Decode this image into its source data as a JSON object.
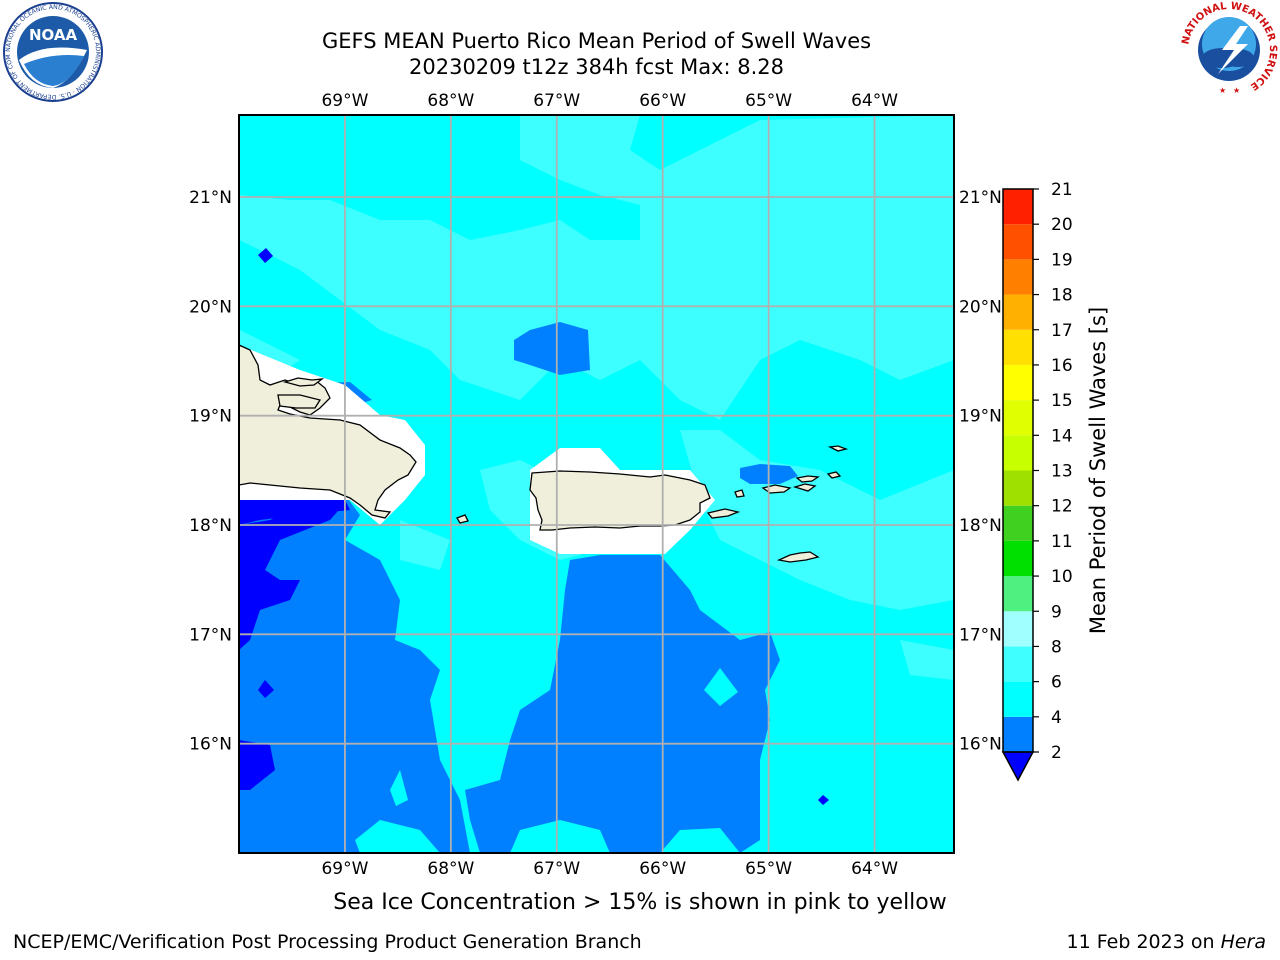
{
  "title": {
    "line1": "GEFS MEAN Puerto Rico Mean Period of Swell Waves",
    "line2": "20230209 t12z 384h fcst   Max: 8.28"
  },
  "map": {
    "lon_range": [
      -70.0,
      -63.25
    ],
    "lat_range": [
      15.0,
      21.75
    ],
    "lon_ticks": [
      -69,
      -68,
      -67,
      -66,
      -65,
      -64
    ],
    "lon_tick_labels": [
      "69°W",
      "68°W",
      "67°W",
      "66°W",
      "65°W",
      "64°W"
    ],
    "lat_ticks": [
      16,
      17,
      18,
      19,
      20,
      21
    ],
    "lat_tick_labels": [
      "16°N",
      "17°N",
      "18°N",
      "19°N",
      "20°N",
      "21°N"
    ],
    "grid": true,
    "field": "Mean Period of Swell Waves",
    "max_value": 8.28,
    "dominant_bands": {
      "north_of_islands": "4-6 s",
      "south_of_puerto_rico": "2-4 s",
      "far_southwest": "below 2 s"
    }
  },
  "colorbar": {
    "label": "Mean Period of Swell Waves [s]",
    "levels": [
      2,
      4,
      6,
      8,
      9,
      10,
      11,
      12,
      13,
      14,
      15,
      16,
      17,
      18,
      19,
      20,
      21
    ],
    "colors": [
      "#0080ff",
      "#00ffff",
      "#40ffff",
      "#a0ffff",
      "#50f080",
      "#00e000",
      "#40d020",
      "#a0e000",
      "#c8ff00",
      "#e0ff00",
      "#ffff00",
      "#ffe000",
      "#ffb000",
      "#ff8000",
      "#ff5000",
      "#ff2000"
    ],
    "extend_min_color": "#0000ff"
  },
  "colors": {
    "band_lt2": "#0000ff",
    "band_2_4": "#0080ff",
    "band_4_6": "#00ffff",
    "band_6_8": "#40ffff",
    "land": "#efefdb",
    "missing": "#ffffff",
    "grid": "#b0b0b0"
  },
  "note": "Sea Ice Concentration > 15% is shown in pink to yellow",
  "footer": {
    "left": "NCEP/EMC/Verification Post Processing Product Generation Branch",
    "date": "11 Feb 2023 on",
    "machine": "Hera"
  },
  "logos": {
    "noaa": {
      "text": "NOAA",
      "ring_text": "NATIONAL OCEANIC AND ATMOSPHERIC ADMINISTRATION · U.S. DEPARTMENT OF COMMERCE"
    },
    "nws": {
      "ring_text": "NATIONAL WEATHER SERVICE"
    }
  }
}
